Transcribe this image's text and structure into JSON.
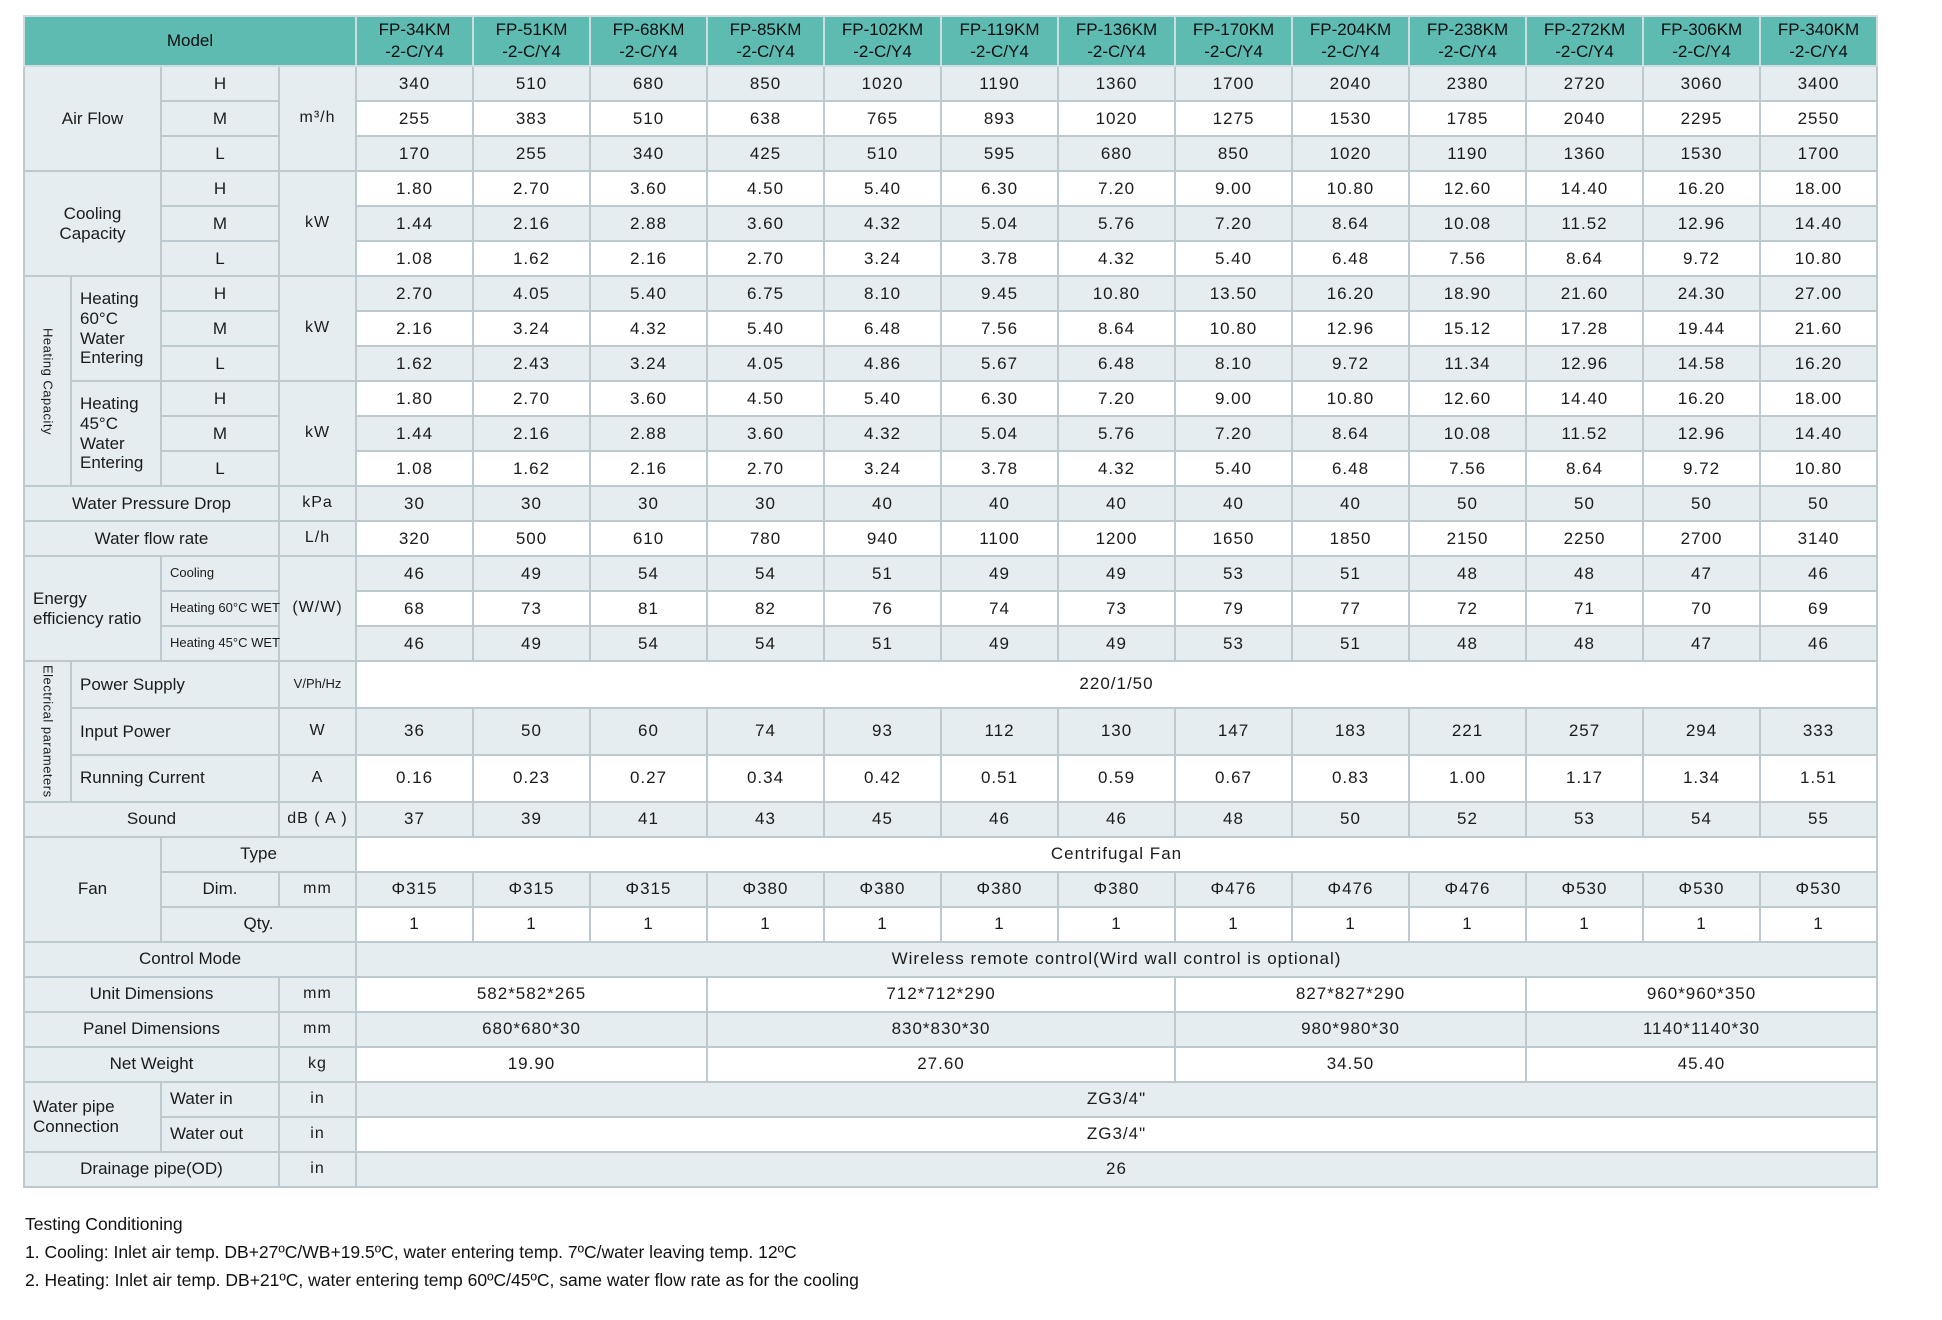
{
  "header": {
    "model_label": "Model",
    "models": [
      {
        "l1": "FP-34KM",
        "l2": "-2-C/Y4"
      },
      {
        "l1": "FP-51KM",
        "l2": "-2-C/Y4"
      },
      {
        "l1": "FP-68KM",
        "l2": "-2-C/Y4"
      },
      {
        "l1": "FP-85KM",
        "l2": "-2-C/Y4"
      },
      {
        "l1": "FP-102KM",
        "l2": "-2-C/Y4"
      },
      {
        "l1": "FP-119KM",
        "l2": "-2-C/Y4"
      },
      {
        "l1": "FP-136KM",
        "l2": "-2-C/Y4"
      },
      {
        "l1": "FP-170KM",
        "l2": "-2-C/Y4"
      },
      {
        "l1": "FP-204KM",
        "l2": "-2-C/Y4"
      },
      {
        "l1": "FP-238KM",
        "l2": "-2-C/Y4"
      },
      {
        "l1": "FP-272KM",
        "l2": "-2-C/Y4"
      },
      {
        "l1": "FP-306KM",
        "l2": "-2-C/Y4"
      },
      {
        "l1": "FP-340KM",
        "l2": "-2-C/Y4"
      }
    ]
  },
  "table": {
    "air_flow": {
      "label": "Air Flow",
      "unit": "m³/h",
      "levels": [
        "H",
        "M",
        "L"
      ],
      "h": [
        "340",
        "510",
        "680",
        "850",
        "1020",
        "1190",
        "1360",
        "1700",
        "2040",
        "2380",
        "2720",
        "3060",
        "3400"
      ],
      "m": [
        "255",
        "383",
        "510",
        "638",
        "765",
        "893",
        "1020",
        "1275",
        "1530",
        "1785",
        "2040",
        "2295",
        "2550"
      ],
      "l": [
        "170",
        "255",
        "340",
        "425",
        "510",
        "595",
        "680",
        "850",
        "1020",
        "1190",
        "1360",
        "1530",
        "1700"
      ]
    },
    "cooling_capacity": {
      "label": "Cooling Capacity",
      "unit": "kW",
      "levels": [
        "H",
        "M",
        "L"
      ],
      "h": [
        "1.80",
        "2.70",
        "3.60",
        "4.50",
        "5.40",
        "6.30",
        "7.20",
        "9.00",
        "10.80",
        "12.60",
        "14.40",
        "16.20",
        "18.00"
      ],
      "m": [
        "1.44",
        "2.16",
        "2.88",
        "3.60",
        "4.32",
        "5.04",
        "5.76",
        "7.20",
        "8.64",
        "10.08",
        "11.52",
        "12.96",
        "14.40"
      ],
      "l": [
        "1.08",
        "1.62",
        "2.16",
        "2.70",
        "3.24",
        "3.78",
        "4.32",
        "5.40",
        "6.48",
        "7.56",
        "8.64",
        "9.72",
        "10.80"
      ]
    },
    "heating_capacity": {
      "group_label": "Heating Capacity",
      "h60": {
        "label": "Heating 60°C Water Entering",
        "unit": "kW",
        "levels": [
          "H",
          "M",
          "L"
        ],
        "h": [
          "2.70",
          "4.05",
          "5.40",
          "6.75",
          "8.10",
          "9.45",
          "10.80",
          "13.50",
          "16.20",
          "18.90",
          "21.60",
          "24.30",
          "27.00"
        ],
        "m": [
          "2.16",
          "3.24",
          "4.32",
          "5.40",
          "6.48",
          "7.56",
          "8.64",
          "10.80",
          "12.96",
          "15.12",
          "17.28",
          "19.44",
          "21.60"
        ],
        "l": [
          "1.62",
          "2.43",
          "3.24",
          "4.05",
          "4.86",
          "5.67",
          "6.48",
          "8.10",
          "9.72",
          "11.34",
          "12.96",
          "14.58",
          "16.20"
        ]
      },
      "h45": {
        "label": "Heating 45°C Water Entering",
        "unit": "kW",
        "levels": [
          "H",
          "M",
          "L"
        ],
        "h": [
          "1.80",
          "2.70",
          "3.60",
          "4.50",
          "5.40",
          "6.30",
          "7.20",
          "9.00",
          "10.80",
          "12.60",
          "14.40",
          "16.20",
          "18.00"
        ],
        "m": [
          "1.44",
          "2.16",
          "2.88",
          "3.60",
          "4.32",
          "5.04",
          "5.76",
          "7.20",
          "8.64",
          "10.08",
          "11.52",
          "12.96",
          "14.40"
        ],
        "l": [
          "1.08",
          "1.62",
          "2.16",
          "2.70",
          "3.24",
          "3.78",
          "4.32",
          "5.40",
          "6.48",
          "7.56",
          "8.64",
          "9.72",
          "10.80"
        ]
      }
    },
    "water_pressure_drop": {
      "label": "Water Pressure Drop",
      "unit": "kPa",
      "values": [
        "30",
        "30",
        "30",
        "30",
        "40",
        "40",
        "40",
        "40",
        "40",
        "50",
        "50",
        "50",
        "50"
      ]
    },
    "water_flow_rate": {
      "label": "Water flow rate",
      "unit": "L/h",
      "values": [
        "320",
        "500",
        "610",
        "780",
        "940",
        "1100",
        "1200",
        "1650",
        "1850",
        "2150",
        "2250",
        "2700",
        "3140"
      ]
    },
    "eer": {
      "label": "Energy efficiency ratio",
      "unit": "(W/W)",
      "cooling_label": "Cooling",
      "h60_label": "Heating 60°C WET",
      "h45_label": "Heating 45°C WET",
      "cooling": [
        "46",
        "49",
        "54",
        "54",
        "51",
        "49",
        "49",
        "53",
        "51",
        "48",
        "48",
        "47",
        "46"
      ],
      "h60": [
        "68",
        "73",
        "81",
        "82",
        "76",
        "74",
        "73",
        "79",
        "77",
        "72",
        "71",
        "70",
        "69"
      ],
      "h45": [
        "46",
        "49",
        "54",
        "54",
        "51",
        "49",
        "49",
        "53",
        "51",
        "48",
        "48",
        "47",
        "46"
      ]
    },
    "electrical": {
      "group_label": "Electrical parameters",
      "power_supply": {
        "label": "Power Supply",
        "unit": "V/Ph/Hz",
        "value": "220/1/50"
      },
      "input_power": {
        "label": "Input Power",
        "unit": "W",
        "values": [
          "36",
          "50",
          "60",
          "74",
          "93",
          "112",
          "130",
          "147",
          "183",
          "221",
          "257",
          "294",
          "333"
        ]
      },
      "running_current": {
        "label": "Running Current",
        "unit": "A",
        "values": [
          "0.16",
          "0.23",
          "0.27",
          "0.34",
          "0.42",
          "0.51",
          "0.59",
          "0.67",
          "0.83",
          "1.00",
          "1.17",
          "1.34",
          "1.51"
        ]
      }
    },
    "sound": {
      "label": "Sound",
      "unit": "dB ( A )",
      "values": [
        "37",
        "39",
        "41",
        "43",
        "45",
        "46",
        "46",
        "48",
        "50",
        "52",
        "53",
        "54",
        "55"
      ]
    },
    "fan": {
      "label": "Fan",
      "type_label": "Type",
      "type_value": "Centrifugal Fan",
      "dim_label": "Dim.",
      "dim_unit": "mm",
      "dim_values": [
        "Φ315",
        "Φ315",
        "Φ315",
        "Φ380",
        "Φ380",
        "Φ380",
        "Φ380",
        "Φ476",
        "Φ476",
        "Φ476",
        "Φ530",
        "Φ530",
        "Φ530"
      ],
      "qty_label": "Qty.",
      "qty_values": [
        "1",
        "1",
        "1",
        "1",
        "1",
        "1",
        "1",
        "1",
        "1",
        "1",
        "1",
        "1",
        "1"
      ]
    },
    "control_mode": {
      "label": "Control Mode",
      "value": "Wireless remote control(Wird wall control is optional)"
    },
    "unit_dimensions": {
      "label": "Unit Dimensions",
      "unit": "mm",
      "values": [
        "582*582*265",
        "712*712*290",
        "827*827*290",
        "960*960*350"
      ]
    },
    "panel_dimensions": {
      "label": "Panel Dimensions",
      "unit": "mm",
      "values": [
        "680*680*30",
        "830*830*30",
        "980*980*30",
        "1140*1140*30"
      ]
    },
    "net_weight": {
      "label": "Net Weight",
      "unit": "kg",
      "values": [
        "19.90",
        "27.60",
        "34.50",
        "45.40"
      ]
    },
    "water_pipe": {
      "label": "Water pipe Connection",
      "in_label": "Water in",
      "out_label": "Water out",
      "unit": "in",
      "in_value": "ZG3/4\"",
      "out_value": "ZG3/4\""
    },
    "drainage": {
      "label": "Drainage pipe(OD)",
      "unit": "in",
      "value": "26"
    }
  },
  "notes": {
    "title": "Testing Conditioning",
    "line1": "1. Cooling: Inlet air temp. DB+27ºC/WB+19.5ºC, water entering temp. 7ºC/water leaving temp. 12ºC",
    "line2": "2. Heating: Inlet air temp. DB+21ºC, water entering temp 60ºC/45ºC, same water flow rate as for the cooling"
  }
}
